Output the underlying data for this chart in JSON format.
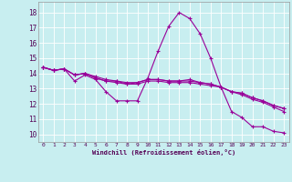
{
  "xlabel": "Windchill (Refroidissement éolien,°C)",
  "ylabel": "",
  "background_color": "#c8eef0",
  "grid_color": "#ffffff",
  "line_color": "#990099",
  "xlim": [
    -0.5,
    23.5
  ],
  "ylim": [
    9.5,
    18.7
  ],
  "xticks": [
    0,
    1,
    2,
    3,
    4,
    5,
    6,
    7,
    8,
    9,
    10,
    11,
    12,
    13,
    14,
    15,
    16,
    17,
    18,
    19,
    20,
    21,
    22,
    23
  ],
  "yticks": [
    10,
    11,
    12,
    13,
    14,
    15,
    16,
    17,
    18
  ],
  "series": [
    {
      "x": [
        0,
        1,
        2,
        3,
        4,
        5,
        6,
        7,
        8,
        9,
        10,
        11,
        12,
        13,
        14,
        15,
        16,
        17,
        18,
        19,
        20,
        21,
        22,
        23
      ],
      "y": [
        14.4,
        14.2,
        14.3,
        13.5,
        13.9,
        13.6,
        12.8,
        12.2,
        12.2,
        12.2,
        13.7,
        15.5,
        17.1,
        18.0,
        17.6,
        16.6,
        15.0,
        13.1,
        11.5,
        11.1,
        10.5,
        10.5,
        10.2,
        10.1
      ]
    },
    {
      "x": [
        0,
        1,
        2,
        3,
        4,
        5,
        6,
        7,
        8,
        9,
        10,
        11,
        12,
        13,
        14,
        15,
        16,
        17,
        18,
        19,
        20,
        21,
        22,
        23
      ],
      "y": [
        14.4,
        14.2,
        14.3,
        13.9,
        14.0,
        13.7,
        13.5,
        13.5,
        13.3,
        13.4,
        13.6,
        13.6,
        13.5,
        13.5,
        13.6,
        13.4,
        13.3,
        13.1,
        12.8,
        12.7,
        12.4,
        12.2,
        11.9,
        11.7
      ]
    },
    {
      "x": [
        0,
        1,
        2,
        3,
        4,
        5,
        6,
        7,
        8,
        9,
        10,
        11,
        12,
        13,
        14,
        15,
        16,
        17,
        18,
        19,
        20,
        21,
        22,
        23
      ],
      "y": [
        14.4,
        14.2,
        14.3,
        13.9,
        14.0,
        13.7,
        13.5,
        13.4,
        13.3,
        13.3,
        13.5,
        13.5,
        13.4,
        13.4,
        13.4,
        13.3,
        13.2,
        13.1,
        12.8,
        12.6,
        12.3,
        12.1,
        11.8,
        11.5
      ]
    },
    {
      "x": [
        0,
        1,
        2,
        3,
        4,
        5,
        6,
        7,
        8,
        9,
        10,
        11,
        12,
        13,
        14,
        15,
        16,
        17,
        18,
        19,
        20,
        21,
        22,
        23
      ],
      "y": [
        14.4,
        14.2,
        14.3,
        13.9,
        14.0,
        13.8,
        13.6,
        13.5,
        13.4,
        13.4,
        13.6,
        13.6,
        13.5,
        13.5,
        13.5,
        13.4,
        13.3,
        13.1,
        12.8,
        12.7,
        12.4,
        12.2,
        11.9,
        11.7
      ]
    }
  ]
}
